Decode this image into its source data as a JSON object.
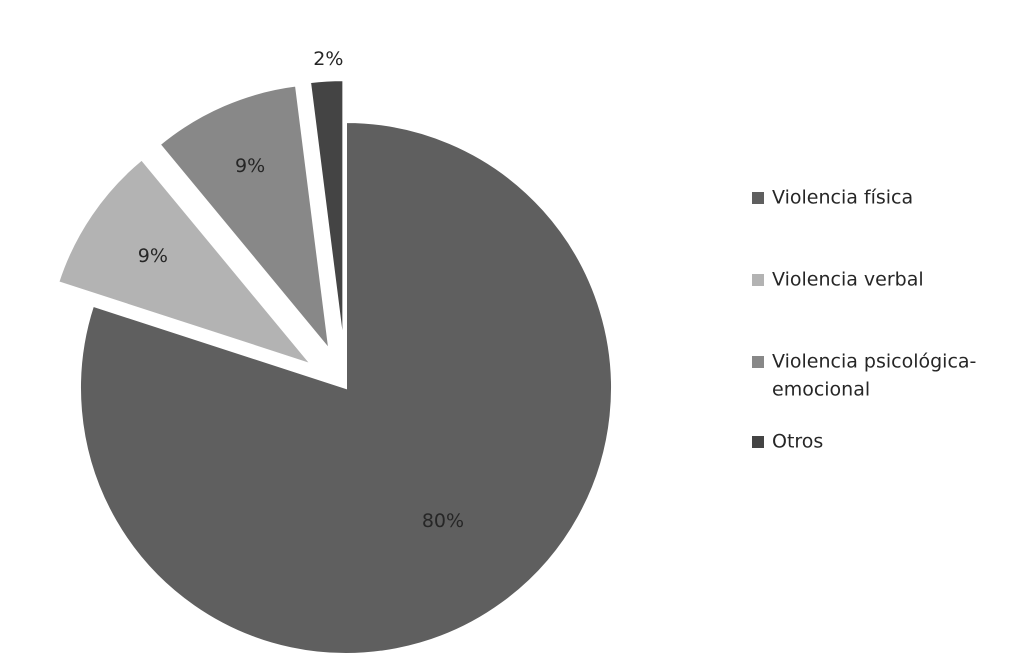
{
  "chart_data": {
    "type": "pie",
    "title": "",
    "slices": [
      {
        "label": "Violencia física",
        "value": 80,
        "data_label": "80%",
        "color": "#5f5f5f",
        "exploded": false
      },
      {
        "label": "Violencia verbal",
        "value": 9,
        "data_label": "9%",
        "color": "#b3b3b3",
        "exploded": true
      },
      {
        "label": "Violencia psicológica-emocional",
        "value": 9,
        "data_label": "9%",
        "color": "#888888",
        "exploded": true
      },
      {
        "label": "Otros",
        "value": 2,
        "data_label": "2%",
        "color": "#444444",
        "exploded": true
      }
    ],
    "legend": {
      "placement": "right",
      "entries": [
        {
          "lines": [
            "Violencia física"
          ],
          "color": "#5f5f5f"
        },
        {
          "lines": [
            "Violencia verbal"
          ],
          "color": "#b3b3b3"
        },
        {
          "lines": [
            "Violencia psicológica-",
            "emocional"
          ],
          "color": "#888888"
        },
        {
          "lines": [
            "Otros"
          ],
          "color": "#444444"
        }
      ]
    }
  }
}
